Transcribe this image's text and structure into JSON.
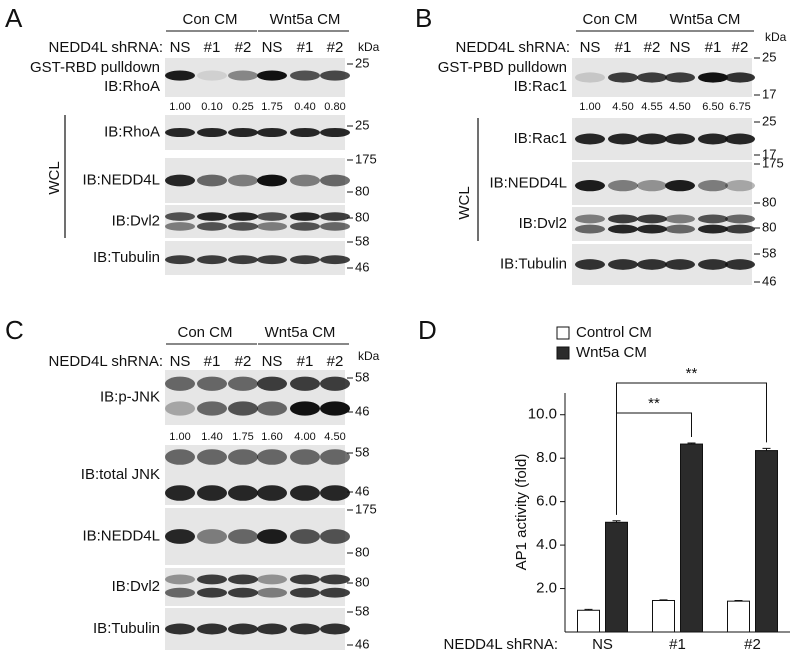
{
  "panels": [
    {
      "letter": "A",
      "groups": [
        "Con CM",
        "Wnt5a CM"
      ],
      "shrna_label": "NEDD4L shRNA:",
      "lanes": [
        "NS",
        "#1",
        "#2",
        "NS",
        "#1",
        "#2"
      ],
      "kda": "kDa",
      "quantification": [
        "1.00",
        "0.10",
        "0.25",
        "1.75",
        "0.40",
        "0.80"
      ],
      "wcl": "WCL",
      "blots": [
        {
          "label": [
            "GST-RBD pulldown",
            "IB:RhoA"
          ],
          "markers": [
            "25"
          ]
        },
        {
          "label": [
            "IB:RhoA"
          ],
          "markers": [
            "25"
          ]
        },
        {
          "label": [
            "IB:NEDD4L"
          ],
          "markers": [
            "175",
            "80"
          ]
        },
        {
          "label": [
            "IB:Dvl2"
          ],
          "markers": [
            "80"
          ]
        },
        {
          "label": [
            "IB:Tubulin"
          ],
          "markers": [
            "58",
            "46"
          ]
        }
      ]
    },
    {
      "letter": "B",
      "groups": [
        "Con CM",
        "Wnt5a CM"
      ],
      "shrna_label": "NEDD4L shRNA:",
      "lanes": [
        "NS",
        "#1",
        "#2",
        "NS",
        "#1",
        "#2"
      ],
      "kda": "kDa",
      "quantification": [
        "1.00",
        "4.50",
        "4.55",
        "4.50",
        "6.50",
        "6.75"
      ],
      "wcl": "WCL",
      "blots": [
        {
          "label": [
            "GST-PBD pulldown",
            "IB:Rac1"
          ],
          "markers": [
            "25",
            "17"
          ]
        },
        {
          "label": [
            "IB:Rac1"
          ],
          "markers": [
            "25",
            "17"
          ]
        },
        {
          "label": [
            "IB:NEDD4L"
          ],
          "markers": [
            "175",
            "80"
          ]
        },
        {
          "label": [
            "IB:Dvl2"
          ],
          "markers": [
            "80"
          ]
        },
        {
          "label": [
            "IB:Tubulin"
          ],
          "markers": [
            "58",
            "46"
          ]
        }
      ]
    },
    {
      "letter": "C",
      "groups": [
        "Con CM",
        "Wnt5a CM"
      ],
      "shrna_label": "NEDD4L shRNA:",
      "lanes": [
        "NS",
        "#1",
        "#2",
        "NS",
        "#1",
        "#2"
      ],
      "kda": "kDa",
      "quantification": [
        "1.00",
        "1.40",
        "1.75",
        "1.60",
        "4.00",
        "4.50"
      ],
      "blots": [
        {
          "label": [
            "IB:p-JNK"
          ],
          "markers": [
            "58",
            "46"
          ]
        },
        {
          "label": [
            "IB:total JNK"
          ],
          "markers": [
            "58",
            "46"
          ]
        },
        {
          "label": [
            "IB:NEDD4L"
          ],
          "markers": [
            "175",
            "80"
          ]
        },
        {
          "label": [
            "IB:Dvl2"
          ],
          "markers": [
            "80"
          ]
        },
        {
          "label": [
            "IB:Tubulin"
          ],
          "markers": [
            "58",
            "46"
          ]
        }
      ]
    }
  ],
  "chart_data": {
    "type": "bar",
    "letter": "D",
    "ylabel": "AP1 activity (fold)",
    "xlabel": "NEDD4L shRNA:",
    "categories": [
      "NS",
      "#1",
      "#2"
    ],
    "series": [
      {
        "name": "Control CM",
        "color": "#ffffff",
        "values": [
          1.0,
          1.45,
          1.42
        ],
        "errors": [
          0.04,
          0.03,
          0.03
        ]
      },
      {
        "name": "Wnt5a CM",
        "color": "#2b2b2b",
        "values": [
          5.05,
          8.65,
          8.35
        ],
        "errors": [
          0.07,
          0.05,
          0.1
        ]
      }
    ],
    "ylim": [
      0,
      11
    ],
    "yticks": [
      {
        "value": 2,
        "label": "2.0"
      },
      {
        "value": 4,
        "label": "4.0"
      },
      {
        "value": 6,
        "label": "6.0"
      },
      {
        "value": 8,
        "label": "8.0"
      },
      {
        "value": 10,
        "label": "10.0"
      }
    ],
    "annotations": [
      "**",
      "**"
    ]
  }
}
